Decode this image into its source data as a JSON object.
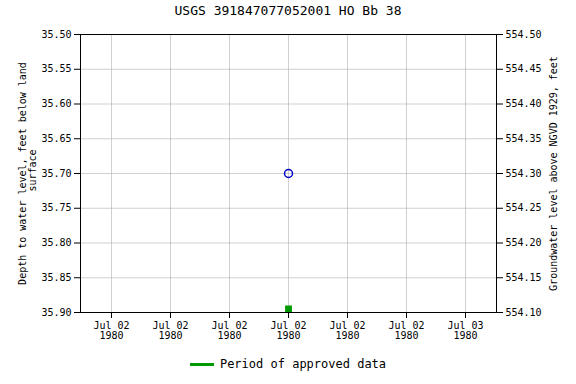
{
  "chart_data": {
    "type": "scatter",
    "title": "USGS 391847077052001 HO Bb  38",
    "ylabel": "Depth to water level, feet below land\n surface",
    "y2label": "Groundwater level above NGVD 1929, feet",
    "categories": [
      "Jul 02\n1980",
      "Jul 02\n1980",
      "Jul 02\n1980",
      "Jul 02\n1980",
      "Jul 02\n1980",
      "Jul 02\n1980",
      "Jul 03\n1980"
    ],
    "series": [
      {
        "color": "#0000cc",
        "marker": "circle",
        "values": [
          null,
          null,
          null,
          35.7,
          null,
          null,
          null
        ]
      },
      {
        "name": "Period of approved data",
        "color": "#009900",
        "marker": "square",
        "values": [
          null,
          null,
          null,
          35.895,
          null,
          null,
          null
        ]
      }
    ],
    "ylim": [
      35.9,
      35.5
    ],
    "yticks": [
      {
        "value": 35.5,
        "label": "35.50"
      },
      35.55,
      {
        "value": 35.6,
        "label": "35.60"
      },
      35.65,
      {
        "value": 35.7,
        "label": "35.70"
      },
      35.75,
      {
        "value": 35.8,
        "label": "35.80"
      },
      35.85,
      {
        "value": 35.9,
        "label": "35.90"
      }
    ],
    "y2lim": [
      554.1,
      554.5
    ],
    "y2ticks": [
      {
        "value": 554.5,
        "label": "554.50"
      },
      554.45,
      {
        "value": 554.4,
        "label": "554.40"
      },
      554.35,
      {
        "value": 554.3,
        "label": "554.30"
      },
      554.25,
      {
        "value": 554.2,
        "label": "554.20"
      },
      554.15,
      {
        "value": 554.1,
        "label": "554.10"
      }
    ],
    "grid": true,
    "legend": "bottom"
  }
}
